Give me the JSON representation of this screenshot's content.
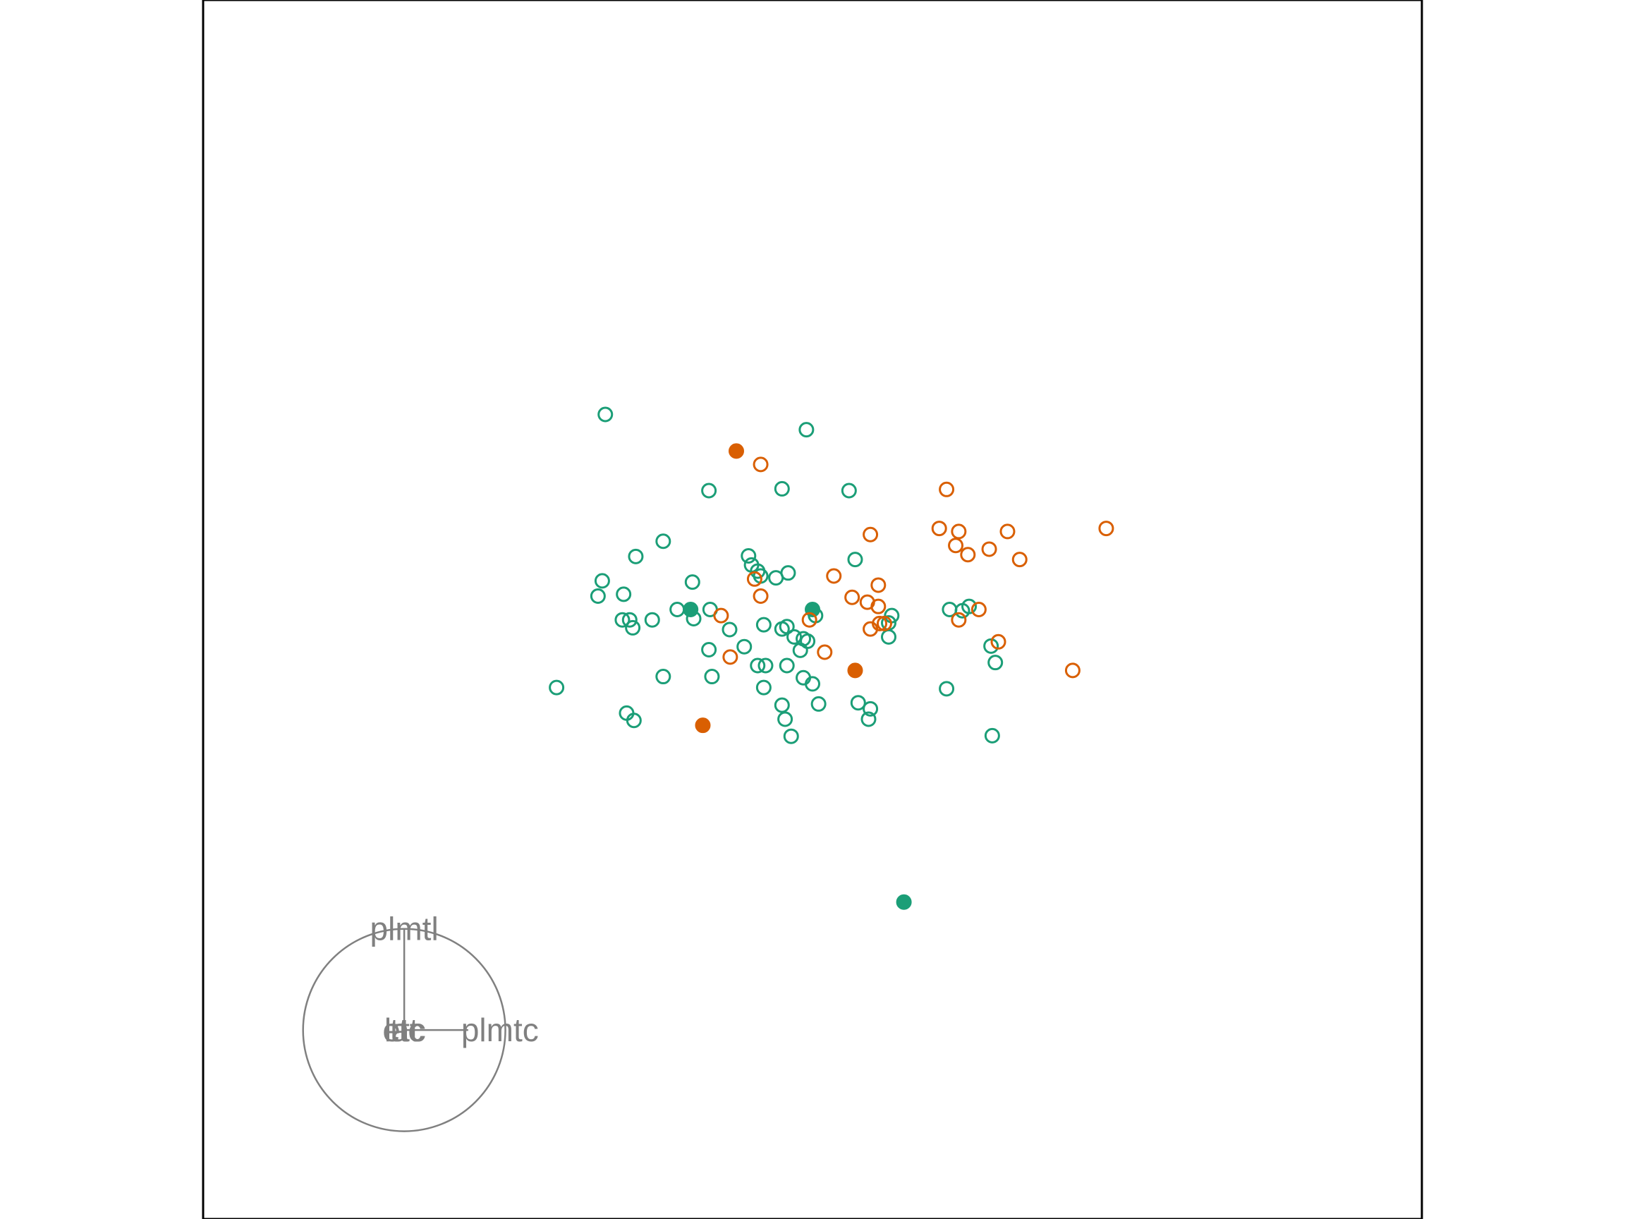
{
  "chart_data": {
    "type": "scatter",
    "title": "",
    "xlabel": "",
    "ylabel": "",
    "xlim": [
      -10,
      10
    ],
    "ylim": [
      -10,
      10
    ],
    "grid": false,
    "legend": "none",
    "colors": {
      "green": "#1b9e77",
      "orange": "#d95f02",
      "axis": "#808080",
      "frame": "#000000"
    },
    "series": [
      {
        "color": "#1b9e77",
        "marker": "open-circle",
        "points": [
          [
            -3.4,
            3.2
          ],
          [
            -0.1,
            2.95
          ],
          [
            -1.7,
            1.95
          ],
          [
            -0.5,
            1.98
          ],
          [
            0.6,
            1.95
          ],
          [
            -2.45,
            1.12
          ],
          [
            -2.9,
            0.87
          ],
          [
            -1.05,
            0.88
          ],
          [
            -1.0,
            0.73
          ],
          [
            -0.4,
            0.6
          ],
          [
            -0.9,
            0.63
          ],
          [
            -0.85,
            0.55
          ],
          [
            -0.6,
            0.52
          ],
          [
            0.7,
            0.82
          ],
          [
            -3.45,
            0.47
          ],
          [
            -3.52,
            0.22
          ],
          [
            -3.1,
            0.25
          ],
          [
            -1.97,
            0.45
          ],
          [
            -2.22,
            0.0
          ],
          [
            -1.68,
            0.0
          ],
          [
            -1.95,
            -0.15
          ],
          [
            -2.63,
            -0.17
          ],
          [
            -3.12,
            -0.17
          ],
          [
            -3.0,
            -0.17
          ],
          [
            -2.95,
            -0.3
          ],
          [
            0.05,
            -0.1
          ],
          [
            1.3,
            -0.1
          ],
          [
            1.25,
            -0.22
          ],
          [
            2.25,
            0.0
          ],
          [
            2.57,
            0.05
          ],
          [
            2.46,
            -0.02
          ],
          [
            -0.8,
            -0.25
          ],
          [
            -0.42,
            -0.28
          ],
          [
            -0.5,
            -0.32
          ],
          [
            -1.36,
            -0.33
          ],
          [
            -0.3,
            -0.45
          ],
          [
            -0.15,
            -0.48
          ],
          [
            -0.08,
            -0.52
          ],
          [
            1.25,
            -0.45
          ],
          [
            -1.12,
            -0.61
          ],
          [
            -0.2,
            -0.67
          ],
          [
            -1.7,
            -0.66
          ],
          [
            -0.9,
            -0.92
          ],
          [
            -0.77,
            -0.92
          ],
          [
            -0.42,
            -0.92
          ],
          [
            2.93,
            -0.6
          ],
          [
            3.0,
            -0.87
          ],
          [
            -2.45,
            -1.1
          ],
          [
            -1.65,
            -1.1
          ],
          [
            -0.15,
            -1.12
          ],
          [
            0.0,
            -1.22
          ],
          [
            -0.8,
            -1.28
          ],
          [
            -4.2,
            -1.28
          ],
          [
            2.2,
            -1.3
          ],
          [
            -0.5,
            -1.57
          ],
          [
            0.1,
            -1.55
          ],
          [
            0.75,
            -1.53
          ],
          [
            0.95,
            -1.63
          ],
          [
            -3.05,
            -1.7
          ],
          [
            -2.93,
            -1.82
          ],
          [
            -0.45,
            -1.8
          ],
          [
            0.92,
            -1.8
          ],
          [
            -0.35,
            -2.08
          ],
          [
            2.95,
            -2.07
          ],
          [
            0.0,
            0.0
          ],
          [
            -2.0,
            0.0
          ],
          [
            1.5,
            -4.8
          ]
        ],
        "filled": [
          [
            0.0,
            0.0
          ],
          [
            -2.0,
            0.0
          ],
          [
            1.5,
            -4.8
          ]
        ]
      },
      {
        "color": "#d95f02",
        "marker": "open-circle",
        "points": [
          [
            -1.25,
            2.6
          ],
          [
            -0.85,
            2.38
          ],
          [
            2.2,
            1.97
          ],
          [
            4.82,
            1.33
          ],
          [
            2.08,
            1.33
          ],
          [
            2.4,
            1.28
          ],
          [
            3.2,
            1.28
          ],
          [
            0.95,
            1.23
          ],
          [
            2.35,
            1.05
          ],
          [
            2.55,
            0.9
          ],
          [
            2.9,
            0.99
          ],
          [
            3.4,
            0.82
          ],
          [
            -0.95,
            0.5
          ],
          [
            0.35,
            0.55
          ],
          [
            1.08,
            0.4
          ],
          [
            -0.85,
            0.22
          ],
          [
            0.65,
            0.2
          ],
          [
            0.9,
            0.12
          ],
          [
            1.08,
            0.05
          ],
          [
            2.4,
            -0.17
          ],
          [
            2.73,
            0.0
          ],
          [
            -1.5,
            -0.1
          ],
          [
            -0.05,
            -0.17
          ],
          [
            1.18,
            -0.23
          ],
          [
            0.95,
            -0.32
          ],
          [
            1.1,
            -0.23
          ],
          [
            3.05,
            -0.53
          ],
          [
            0.2,
            -0.7
          ],
          [
            -1.35,
            -0.78
          ],
          [
            4.27,
            -1.0
          ],
          [
            -1.25,
            2.6
          ],
          [
            0.7,
            -1.0
          ],
          [
            -1.8,
            -1.9
          ]
        ],
        "filled": [
          [
            -1.25,
            2.6
          ],
          [
            0.7,
            -1.0
          ],
          [
            -1.8,
            -1.9
          ]
        ]
      }
    ],
    "biplot_circle": {
      "center": [
        -6.7,
        -6.9
      ],
      "radius": 1.66,
      "arrows": [
        {
          "label": "plmtl",
          "dx": 0.0,
          "dy": 1.66
        },
        {
          "label": "plmtc",
          "dx": 1.05,
          "dy": 0.0
        }
      ],
      "center_labels": [
        "lat",
        "etc",
        "ttc"
      ]
    }
  }
}
